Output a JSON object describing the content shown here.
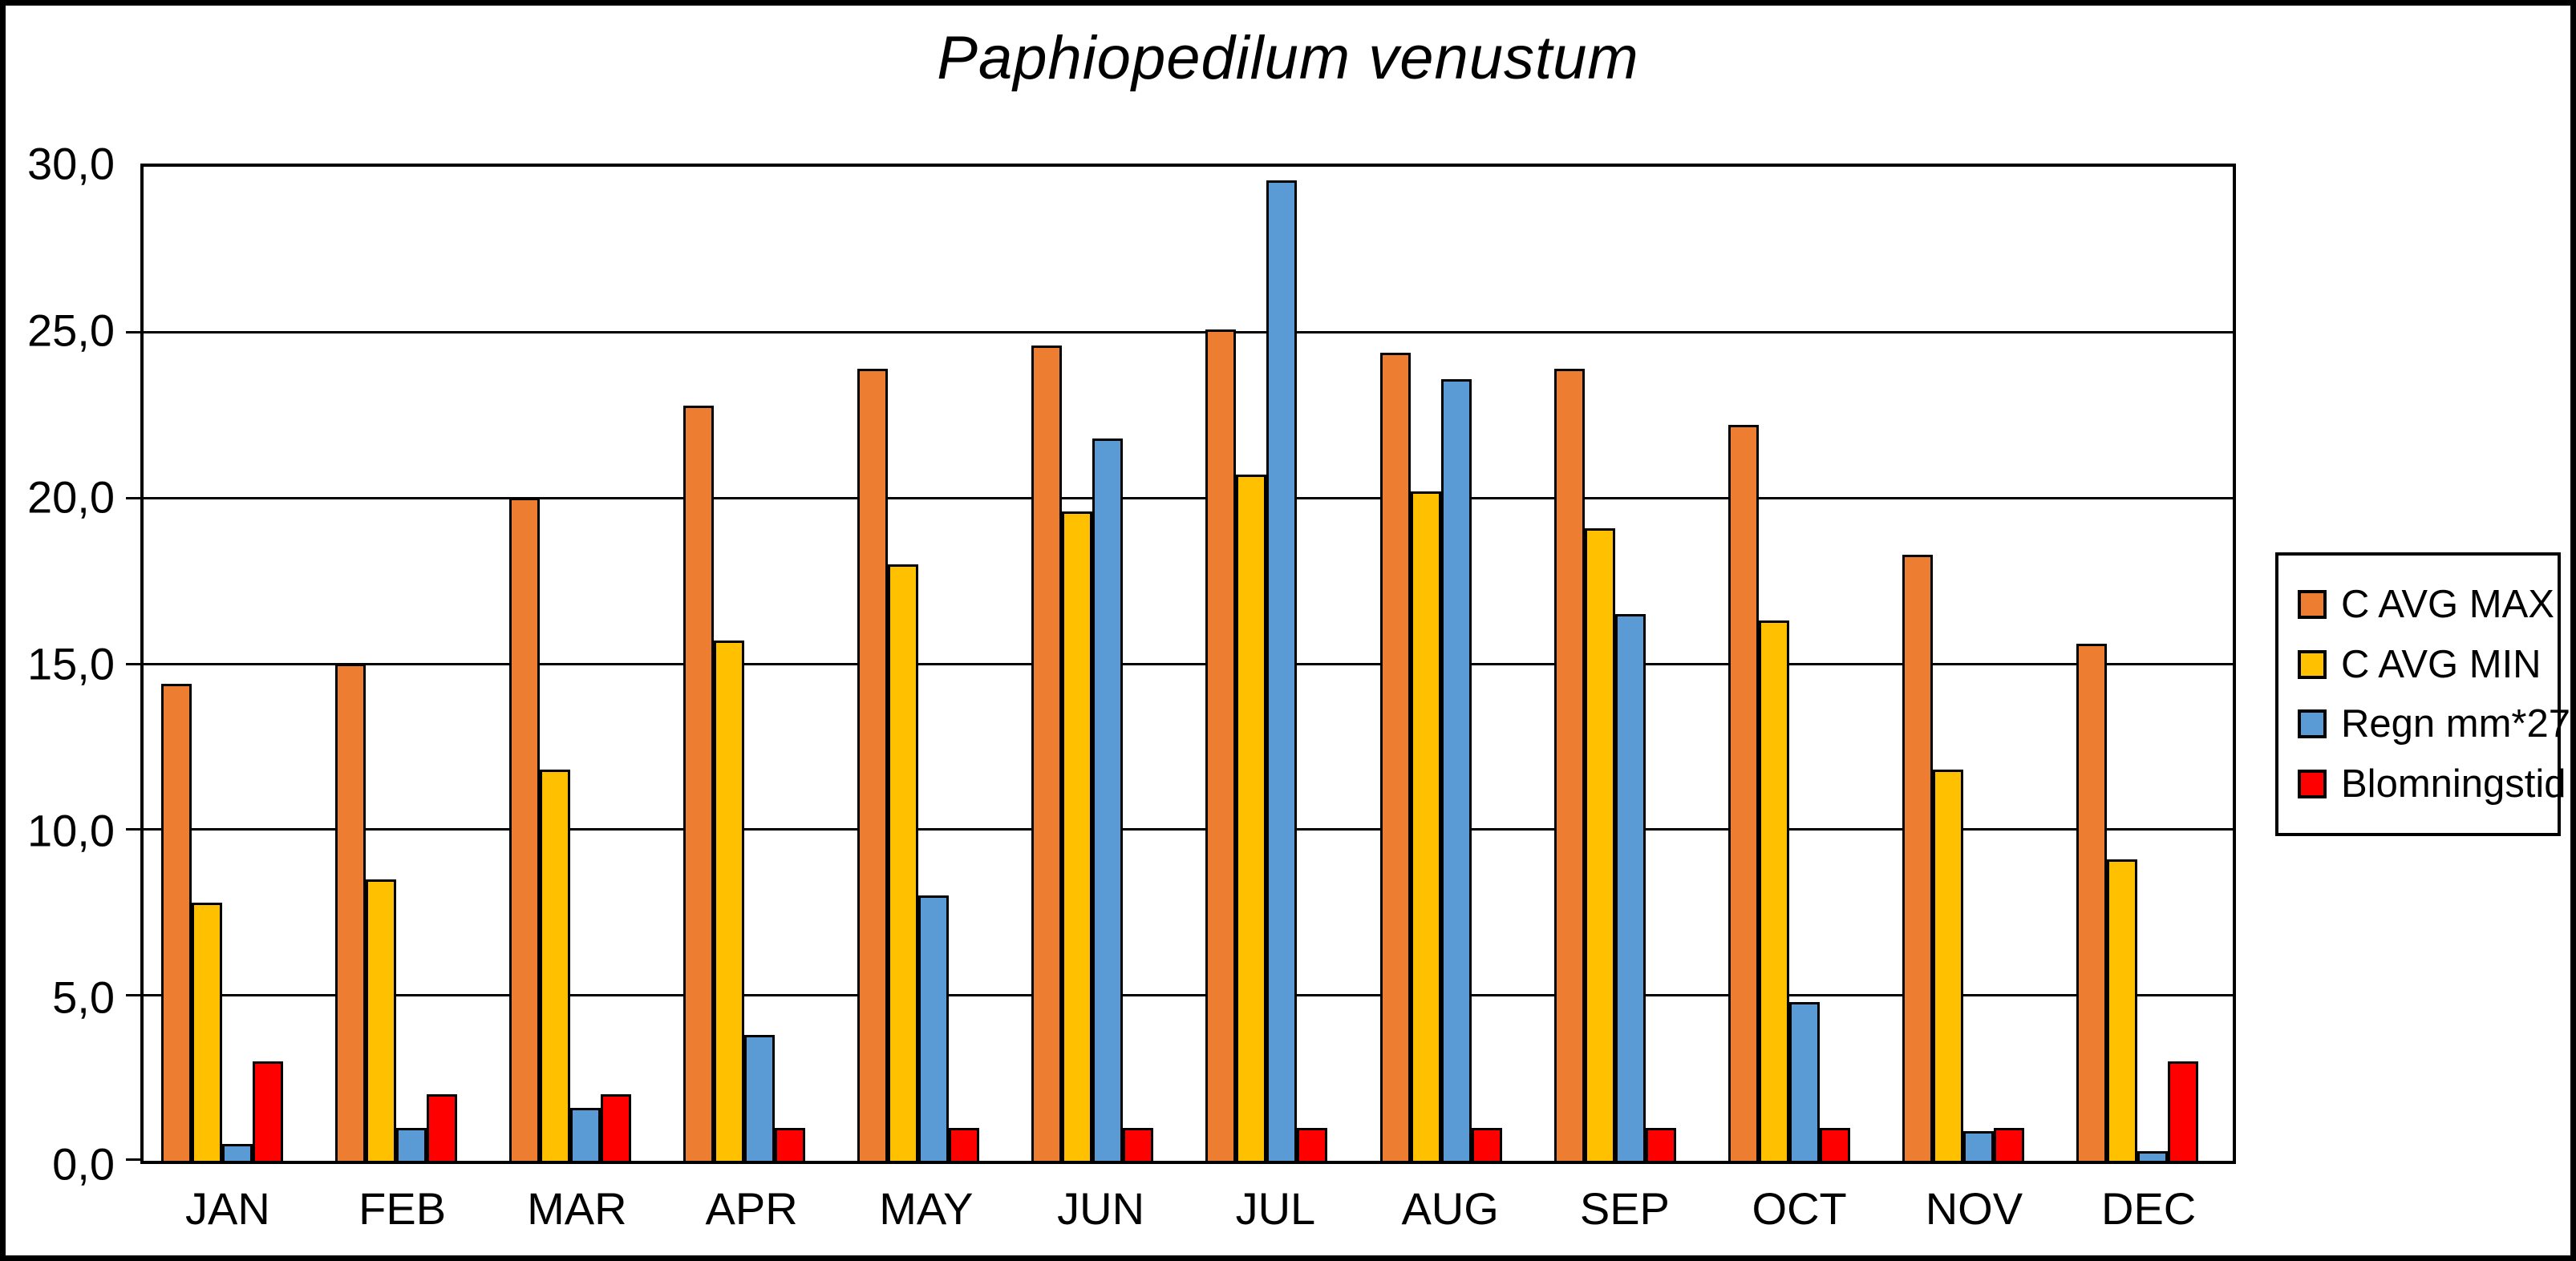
{
  "chart_data": {
    "type": "bar",
    "title": "Paphiopedilum venustum",
    "categories": [
      "JAN",
      "FEB",
      "MAR",
      "APR",
      "MAY",
      "JUN",
      "JUL",
      "AUG",
      "SEP",
      "OCT",
      "NOV",
      "DEC"
    ],
    "series": [
      {
        "name": "C AVG MAX",
        "color": "#ED7D31",
        "values": [
          14.4,
          15.0,
          20.0,
          22.8,
          23.9,
          24.6,
          25.1,
          24.4,
          23.9,
          22.2,
          18.3,
          15.6
        ]
      },
      {
        "name": "C AVG MIN",
        "color": "#FFC000",
        "values": [
          7.8,
          8.5,
          11.8,
          15.7,
          18.0,
          19.6,
          20.7,
          20.2,
          19.1,
          16.3,
          11.8,
          9.1
        ]
      },
      {
        "name": "Regn mm*27",
        "color": "#5B9BD5",
        "values": [
          0.5,
          1.0,
          1.6,
          3.8,
          8.0,
          21.8,
          29.6,
          23.6,
          16.5,
          4.8,
          0.9,
          0.3
        ]
      },
      {
        "name": "Blomningstid",
        "color": "#FF0000",
        "values": [
          3.0,
          2.0,
          2.0,
          1.0,
          1.0,
          1.0,
          1.0,
          1.0,
          1.0,
          1.0,
          1.0,
          3.0
        ]
      }
    ],
    "ylim": [
      0,
      30
    ],
    "y_ticks": [
      {
        "value": 30,
        "label": "30,0"
      },
      {
        "value": 25,
        "label": "25,0"
      },
      {
        "value": 20,
        "label": "20,0"
      },
      {
        "value": 15,
        "label": "15,0"
      },
      {
        "value": 10,
        "label": "10,0"
      },
      {
        "value": 5,
        "label": "5,0"
      },
      {
        "value": 0,
        "label": "0,0"
      }
    ],
    "grid": true,
    "legend_position": "right",
    "colors": {
      "bar_border": "#000000",
      "frame_border": "#000000",
      "background": "#ffffff"
    }
  }
}
